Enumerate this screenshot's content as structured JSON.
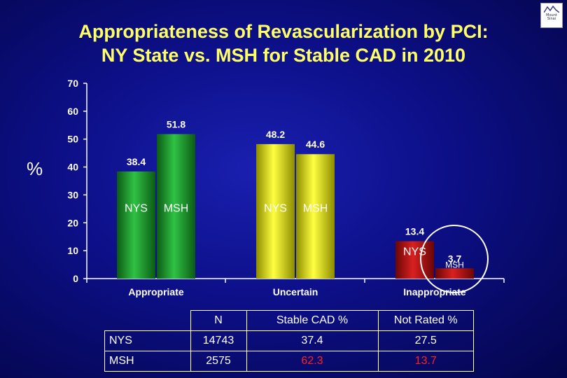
{
  "title": {
    "line1": "Appropriateness of Revascularization by PCI:",
    "line2": "NY State vs. MSH for Stable CAD in 2010"
  },
  "y_axis_symbol": "%",
  "logo": {
    "text": "Mount Sinai"
  },
  "chart_data": {
    "type": "bar",
    "categories": [
      "Appropriate",
      "Uncertain",
      "Inappropriate"
    ],
    "series": [
      {
        "name": "NYS",
        "values": [
          38.4,
          48.2,
          13.4
        ]
      },
      {
        "name": "MSH",
        "values": [
          51.8,
          44.6,
          3.7
        ]
      }
    ],
    "colors": {
      "Appropriate": "#1a9a2a",
      "Uncertain": "#e6e600",
      "Inappropriate": "#b01010"
    },
    "ylim": [
      0,
      70
    ],
    "yticks": [
      0,
      10,
      20,
      30,
      40,
      50,
      60,
      70
    ],
    "value_labels": [
      "38.4",
      "51.8",
      "48.2",
      "44.6",
      "13.4",
      "3.7"
    ],
    "ylabel": "%",
    "highlight_circle_on": "Inappropriate"
  },
  "table": {
    "headers": [
      "",
      "N",
      "Stable CAD %",
      "Not Rated %"
    ],
    "rows": [
      {
        "label": "NYS",
        "n": "14743",
        "stable": "37.4",
        "not_rated": "27.5"
      },
      {
        "label": "MSH",
        "n": "2575",
        "stable": "62.3",
        "not_rated": "13.7"
      }
    ],
    "highlight_color": "#ff2020"
  }
}
